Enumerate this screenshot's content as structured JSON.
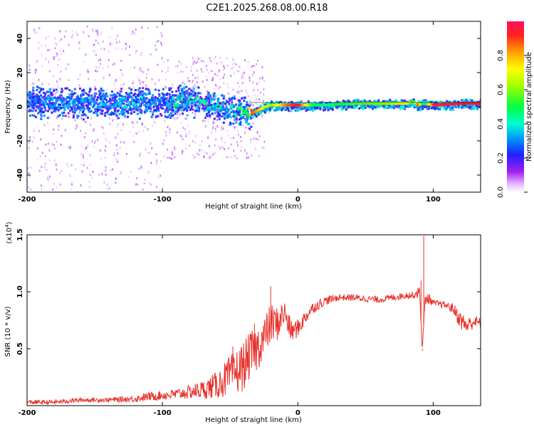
{
  "title": "C2E1.2025.268.08.00.R18",
  "chart_data": [
    {
      "type": "heatmap",
      "name": "spectrogram",
      "xlabel": "Height of straight line (km)",
      "ylabel": "Frequency (Hz)",
      "xlim": [
        -200,
        135
      ],
      "ylim": [
        -50,
        50
      ],
      "xticks": [
        "-200",
        "-100",
        "0",
        "100"
      ],
      "yticks": [
        "40",
        "20",
        "0",
        "-20",
        "-40"
      ],
      "ridge": {
        "description": "dominant normalized spectral amplitude ridge (frequency in Hz vs height in km)",
        "x": [
          -200,
          -180,
          -160,
          -140,
          -120,
          -100,
          -90,
          -80,
          -70,
          -60,
          -50,
          -40,
          -35,
          -30,
          -25,
          -20,
          -10,
          0,
          10,
          20,
          40,
          60,
          80,
          85,
          88,
          92,
          100,
          120,
          135
        ],
        "y": [
          4,
          2,
          3,
          2,
          3,
          2,
          3,
          4,
          2,
          1,
          -2,
          -2,
          -4,
          -2,
          0,
          1,
          1,
          1,
          1,
          1,
          2,
          2,
          2,
          3,
          1,
          2,
          1,
          2,
          2
        ],
        "amplitude": [
          0.3,
          0.32,
          0.33,
          0.35,
          0.34,
          0.3,
          0.45,
          0.4,
          0.42,
          0.4,
          0.38,
          0.45,
          0.9,
          0.8,
          0.65,
          0.6,
          0.85,
          0.95,
          0.5,
          0.45,
          0.55,
          0.6,
          0.7,
          0.5,
          0.9,
          0.4,
          0.95,
          0.95,
          0.95
        ]
      },
      "colorbar": {
        "label": "Normalized spectral amplitude",
        "ticks": [
          "0.0",
          "0.2",
          "0.4",
          "0.6",
          "0.8"
        ],
        "range": [
          0,
          1
        ]
      }
    },
    {
      "type": "line",
      "name": "snr",
      "xlabel": "Height of straight line (km)",
      "ylabel": "SNR (10 * v/v)",
      "scale_label": "(x10",
      "scale_exp": "4",
      "scale_close": ")",
      "xlim": [
        -200,
        135
      ],
      "ylim": [
        0,
        1.5
      ],
      "xticks": [
        "-200",
        "-100",
        "0",
        "100"
      ],
      "yticks": [
        "0.5",
        "1.0",
        "1.5"
      ],
      "color": "#e8302a",
      "x": [
        -200,
        -180,
        -160,
        -140,
        -120,
        -110,
        -100,
        -90,
        -80,
        -70,
        -60,
        -55,
        -50,
        -45,
        -40,
        -35,
        -30,
        -25,
        -20,
        -15,
        -10,
        -5,
        0,
        10,
        20,
        30,
        40,
        50,
        60,
        70,
        80,
        85,
        90,
        92,
        94,
        96,
        100,
        110,
        115,
        120,
        125,
        130,
        135
      ],
      "y": [
        0.03,
        0.03,
        0.05,
        0.05,
        0.06,
        0.08,
        0.09,
        0.1,
        0.12,
        0.14,
        0.18,
        0.22,
        0.26,
        0.3,
        0.35,
        0.45,
        0.5,
        0.6,
        0.72,
        0.72,
        0.82,
        0.65,
        0.68,
        0.85,
        0.92,
        0.95,
        0.95,
        0.94,
        0.93,
        0.95,
        0.97,
        0.97,
        1.0,
        0.5,
        0.92,
        0.95,
        0.9,
        0.88,
        0.85,
        0.75,
        0.7,
        0.74,
        0.72
      ],
      "noise": [
        0.02,
        0.02,
        0.02,
        0.02,
        0.03,
        0.04,
        0.04,
        0.05,
        0.06,
        0.08,
        0.12,
        0.15,
        0.18,
        0.2,
        0.22,
        0.2,
        0.2,
        0.18,
        0.18,
        0.15,
        0.12,
        0.1,
        0.08,
        0.05,
        0.04,
        0.03,
        0.03,
        0.03,
        0.03,
        0.03,
        0.03,
        0.03,
        0.05,
        0.05,
        0.05,
        0.05,
        0.03,
        0.03,
        0.05,
        0.08,
        0.08,
        0.06,
        0.05
      ],
      "spikes": [
        {
          "x": 93,
          "y": 1.49
        },
        {
          "x": 92,
          "y": 0.48
        },
        {
          "x": 91,
          "y": 1.1
        },
        {
          "x": -20,
          "y": 1.05
        },
        {
          "x": -32,
          "y": 0.72
        },
        {
          "x": -48,
          "y": 0.52
        }
      ]
    }
  ]
}
